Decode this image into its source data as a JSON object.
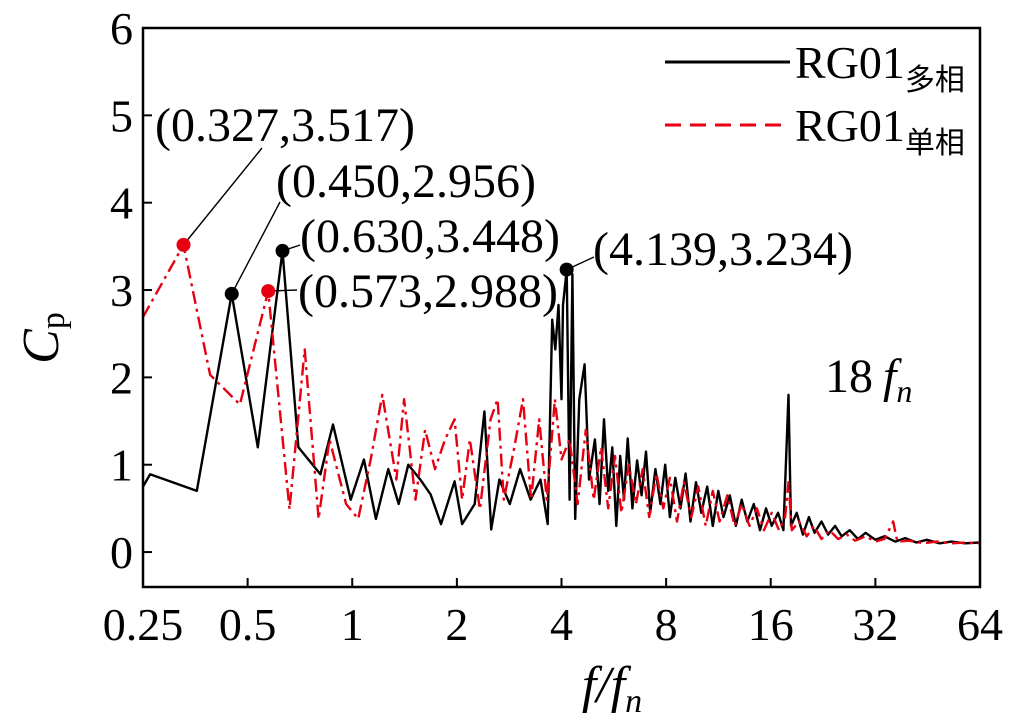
{
  "chart_data": {
    "type": "line",
    "xscale": "log2",
    "xlim": [
      0.25,
      64
    ],
    "ylim": [
      -0.4,
      6
    ],
    "grid": false,
    "legend_position": "top-right",
    "xlabel": {
      "main": "f/f",
      "subscript": "n"
    },
    "ylabel": {
      "main": "C",
      "subscript": "p"
    },
    "xticks": [
      0.25,
      0.5,
      1,
      2,
      4,
      8,
      16,
      32,
      64
    ],
    "xtick_labels": [
      "0.25",
      "0.5",
      "1",
      "2",
      "4",
      "8",
      "16",
      "32",
      "64"
    ],
    "yticks": [
      0,
      1,
      2,
      3,
      4,
      5,
      6
    ],
    "ytick_labels": [
      "0",
      "1",
      "2",
      "3",
      "4",
      "5",
      "6"
    ],
    "series": [
      {
        "name": "RG01",
        "name_subscript": "多相",
        "color": "#000000",
        "line_style": "solid",
        "points": [
          [
            0.25,
            0.75
          ],
          [
            0.262,
            0.89
          ],
          [
            0.357,
            0.7
          ],
          [
            0.45,
            2.956
          ],
          [
            0.535,
            1.2
          ],
          [
            0.63,
            3.448
          ],
          [
            0.7,
            1.2
          ],
          [
            0.81,
            0.89
          ],
          [
            0.88,
            1.46
          ],
          [
            0.99,
            0.6
          ],
          [
            1.08,
            1.06
          ],
          [
            1.17,
            0.38
          ],
          [
            1.27,
            0.95
          ],
          [
            1.36,
            0.55
          ],
          [
            1.45,
            1.0
          ],
          [
            1.57,
            0.83
          ],
          [
            1.68,
            0.66
          ],
          [
            1.8,
            0.32
          ],
          [
            1.97,
            0.81
          ],
          [
            2.07,
            0.32
          ],
          [
            2.25,
            0.55
          ],
          [
            2.4,
            1.61
          ],
          [
            2.51,
            0.26
          ],
          [
            2.65,
            0.83
          ],
          [
            2.84,
            0.55
          ],
          [
            3.04,
            0.95
          ],
          [
            3.26,
            0.6
          ],
          [
            3.48,
            0.83
          ],
          [
            3.65,
            0.32
          ],
          [
            3.76,
            2.66
          ],
          [
            3.84,
            2.32
          ],
          [
            3.92,
            2.83
          ],
          [
            4.0,
            1.75
          ],
          [
            4.04,
            2.83
          ],
          [
            4.139,
            3.234
          ],
          [
            4.22,
            0.6
          ],
          [
            4.3,
            3.18
          ],
          [
            4.38,
            0.38
          ],
          [
            4.5,
            1.75
          ],
          [
            4.66,
            2.15
          ],
          [
            4.8,
            0.83
          ],
          [
            4.99,
            1.29
          ],
          [
            5.15,
            0.55
          ],
          [
            5.3,
            1.52
          ],
          [
            5.45,
            0.7
          ],
          [
            5.6,
            1.2
          ],
          [
            5.75,
            0.3
          ],
          [
            5.9,
            1.1
          ],
          [
            6.05,
            0.6
          ],
          [
            6.2,
            1.3
          ],
          [
            6.4,
            0.5
          ],
          [
            6.6,
            1.05
          ],
          [
            6.8,
            0.65
          ],
          [
            7.0,
            1.15
          ],
          [
            7.2,
            0.45
          ],
          [
            7.45,
            0.95
          ],
          [
            7.7,
            0.55
          ],
          [
            7.95,
            1.0
          ],
          [
            8.2,
            0.4
          ],
          [
            8.5,
            0.85
          ],
          [
            8.8,
            0.5
          ],
          [
            9.1,
            0.9
          ],
          [
            9.4,
            0.35
          ],
          [
            9.75,
            0.8
          ],
          [
            10.1,
            0.45
          ],
          [
            10.5,
            0.75
          ],
          [
            10.9,
            0.3
          ],
          [
            11.3,
            0.7
          ],
          [
            11.7,
            0.4
          ],
          [
            12.2,
            0.65
          ],
          [
            12.7,
            0.3
          ],
          [
            13.2,
            0.6
          ],
          [
            13.7,
            0.35
          ],
          [
            14.3,
            0.55
          ],
          [
            14.9,
            0.25
          ],
          [
            15.5,
            0.5
          ],
          [
            16.1,
            0.3
          ],
          [
            16.8,
            0.45
          ],
          [
            17.4,
            0.25
          ],
          [
            18.0,
            1.8
          ],
          [
            18.3,
            0.3
          ],
          [
            19.0,
            0.45
          ],
          [
            19.8,
            0.2
          ],
          [
            20.6,
            0.4
          ],
          [
            21.4,
            0.22
          ],
          [
            22.4,
            0.35
          ],
          [
            23.4,
            0.2
          ],
          [
            24.5,
            0.3
          ],
          [
            25.6,
            0.18
          ],
          [
            27.0,
            0.25
          ],
          [
            28.5,
            0.15
          ],
          [
            30.0,
            0.22
          ],
          [
            32.0,
            0.14
          ],
          [
            34.0,
            0.18
          ],
          [
            36.5,
            0.12
          ],
          [
            39.0,
            0.16
          ],
          [
            42.0,
            0.11
          ],
          [
            45.0,
            0.14
          ],
          [
            49.0,
            0.1
          ],
          [
            53.0,
            0.12
          ],
          [
            58.0,
            0.1
          ],
          [
            64.0,
            0.11
          ]
        ]
      },
      {
        "name": "RG01",
        "name_subscript": "单相",
        "color": "#e60012",
        "line_style": "dash-dot",
        "points": [
          [
            0.25,
            2.69
          ],
          [
            0.327,
            3.517
          ],
          [
            0.39,
            2.03
          ],
          [
            0.475,
            1.69
          ],
          [
            0.573,
            2.988
          ],
          [
            0.66,
            0.49
          ],
          [
            0.73,
            2.32
          ],
          [
            0.8,
            0.38
          ],
          [
            0.86,
            1.29
          ],
          [
            0.96,
            0.55
          ],
          [
            1.04,
            0.38
          ],
          [
            1.13,
            1.06
          ],
          [
            1.22,
            1.8
          ],
          [
            1.34,
            0.83
          ],
          [
            1.41,
            1.75
          ],
          [
            1.52,
            0.6
          ],
          [
            1.62,
            1.4
          ],
          [
            1.73,
            0.95
          ],
          [
            1.85,
            1.29
          ],
          [
            1.97,
            1.52
          ],
          [
            2.07,
            0.6
          ],
          [
            2.18,
            1.29
          ],
          [
            2.33,
            0.49
          ],
          [
            2.5,
            1.52
          ],
          [
            2.62,
            1.75
          ],
          [
            2.73,
            0.6
          ],
          [
            2.92,
            1.18
          ],
          [
            3.1,
            1.75
          ],
          [
            3.27,
            0.6
          ],
          [
            3.45,
            1.52
          ],
          [
            3.63,
            0.6
          ],
          [
            3.83,
            1.75
          ],
          [
            4.0,
            1.06
          ],
          [
            4.22,
            1.29
          ],
          [
            4.45,
            0.55
          ],
          [
            4.7,
            1.4
          ],
          [
            4.95,
            0.6
          ],
          [
            5.2,
            1.2
          ],
          [
            5.45,
            0.5
          ],
          [
            5.7,
            1.1
          ],
          [
            5.95,
            0.45
          ],
          [
            6.25,
            1.0
          ],
          [
            6.55,
            0.55
          ],
          [
            6.85,
            0.95
          ],
          [
            7.15,
            0.4
          ],
          [
            7.5,
            0.9
          ],
          [
            7.85,
            0.5
          ],
          [
            8.2,
            0.85
          ],
          [
            8.6,
            0.35
          ],
          [
            9.0,
            0.8
          ],
          [
            9.45,
            0.4
          ],
          [
            9.9,
            0.75
          ],
          [
            10.4,
            0.3
          ],
          [
            10.9,
            0.7
          ],
          [
            11.4,
            0.35
          ],
          [
            12.0,
            0.65
          ],
          [
            12.6,
            0.3
          ],
          [
            13.2,
            0.55
          ],
          [
            13.9,
            0.3
          ],
          [
            14.6,
            0.5
          ],
          [
            15.3,
            0.25
          ],
          [
            16.1,
            0.45
          ],
          [
            16.9,
            0.25
          ],
          [
            17.6,
            0.4
          ],
          [
            18.0,
            0.8
          ],
          [
            18.4,
            0.25
          ],
          [
            19.3,
            0.35
          ],
          [
            20.3,
            0.18
          ],
          [
            21.3,
            0.3
          ],
          [
            22.4,
            0.15
          ],
          [
            23.6,
            0.25
          ],
          [
            25.0,
            0.15
          ],
          [
            26.5,
            0.2
          ],
          [
            28.0,
            0.13
          ],
          [
            30.0,
            0.18
          ],
          [
            32.0,
            0.12
          ],
          [
            34.0,
            0.15
          ],
          [
            36.0,
            0.35
          ],
          [
            37.0,
            0.12
          ],
          [
            40.0,
            0.13
          ],
          [
            44.0,
            0.1
          ],
          [
            48.0,
            0.12
          ],
          [
            53.0,
            0.1
          ],
          [
            58.0,
            0.11
          ],
          [
            64.0,
            0.1
          ]
        ]
      }
    ],
    "annotations": [
      {
        "text": "(0.327,3.517)",
        "x": 0.327,
        "y": 3.517,
        "series": 1,
        "marker": true
      },
      {
        "text": "(0.450,2.956)",
        "x": 0.45,
        "y": 2.956,
        "series": 0,
        "marker": true
      },
      {
        "text": "(0.630,3.448)",
        "x": 0.63,
        "y": 3.448,
        "series": 0,
        "marker": true
      },
      {
        "text": "(0.573,2.988)",
        "x": 0.573,
        "y": 2.988,
        "series": 1,
        "marker": true
      },
      {
        "text": "(4.139,3.234)",
        "x": 4.139,
        "y": 3.234,
        "series": 0,
        "marker": true
      },
      {
        "text": "18",
        "variable": "f",
        "subscript": "n",
        "x": 18,
        "y": 1.8,
        "series": 0,
        "marker": false
      }
    ]
  }
}
